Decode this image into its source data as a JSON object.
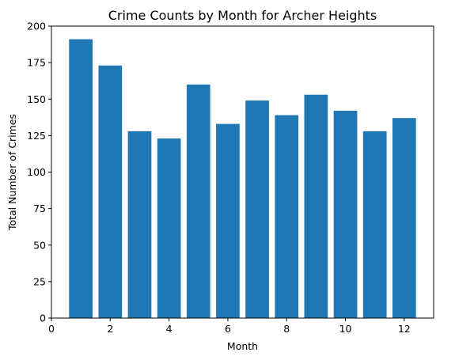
{
  "chart_data": {
    "type": "bar",
    "title": "Crime Counts by Month for Archer Heights",
    "xlabel": "Month",
    "ylabel": "Total Number of Crimes",
    "x": [
      1,
      2,
      3,
      4,
      5,
      6,
      7,
      8,
      9,
      10,
      11,
      12
    ],
    "values": [
      191,
      173,
      128,
      123,
      160,
      133,
      149,
      139,
      153,
      142,
      128,
      137
    ],
    "xlim": [
      0,
      13
    ],
    "ylim": [
      0,
      200
    ],
    "x_ticks": [
      "0",
      "2",
      "4",
      "6",
      "8",
      "10",
      "12"
    ],
    "y_ticks": [
      "0",
      "25",
      "50",
      "75",
      "100",
      "125",
      "150",
      "175",
      "200"
    ],
    "bar_color": "#1f77b4",
    "grid": false,
    "legend": "none"
  }
}
